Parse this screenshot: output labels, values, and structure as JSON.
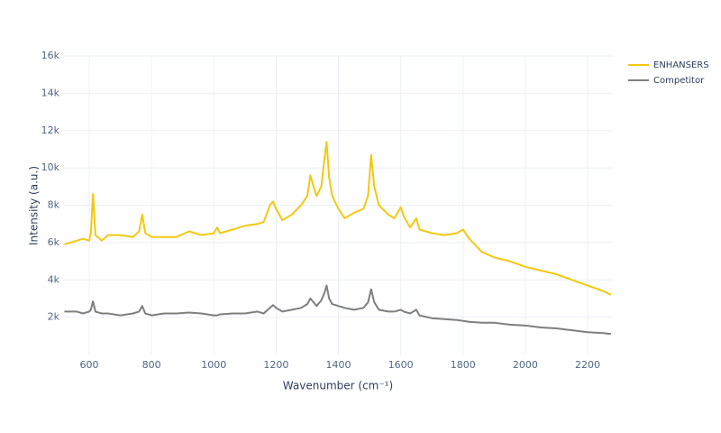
{
  "chart_data": {
    "type": "line",
    "x_label": "Wavenumber (cm⁻¹)",
    "y_label": "Intensity (a.u.)",
    "x": [
      520,
      560,
      580,
      600,
      605,
      612,
      620,
      640,
      660,
      700,
      740,
      760,
      770,
      780,
      800,
      840,
      880,
      920,
      960,
      1000,
      1010,
      1020,
      1060,
      1100,
      1140,
      1160,
      1180,
      1190,
      1200,
      1220,
      1250,
      1280,
      1300,
      1310,
      1320,
      1330,
      1345,
      1355,
      1362,
      1370,
      1380,
      1400,
      1420,
      1450,
      1480,
      1495,
      1505,
      1515,
      1530,
      1560,
      1580,
      1600,
      1610,
      1630,
      1650,
      1660,
      1700,
      1740,
      1780,
      1800,
      1820,
      1860,
      1900,
      1950,
      2000,
      2050,
      2100,
      2150,
      2200,
      2250,
      2275
    ],
    "series": [
      {
        "name": "ENHANSERS",
        "color": "#f2c811",
        "values": [
          5900,
          6100,
          6200,
          6100,
          6500,
          8600,
          6400,
          6100,
          6400,
          6400,
          6300,
          6600,
          7500,
          6500,
          6300,
          6300,
          6300,
          6600,
          6400,
          6500,
          6800,
          6500,
          6700,
          6900,
          7000,
          7100,
          8000,
          8200,
          7800,
          7200,
          7500,
          8000,
          8500,
          9600,
          9000,
          8500,
          9000,
          10500,
          11400,
          9500,
          8500,
          7800,
          7300,
          7600,
          7800,
          8500,
          10700,
          9000,
          8000,
          7500,
          7300,
          7900,
          7400,
          6800,
          7300,
          6700,
          6500,
          6400,
          6500,
          6700,
          6200,
          5500,
          5200,
          5000,
          4700,
          4500,
          4300,
          4000,
          3700,
          3400,
          3200
        ]
      },
      {
        "name": "Competitor",
        "color": "#7f7f7f",
        "values": [
          2300,
          2300,
          2200,
          2300,
          2400,
          2850,
          2300,
          2200,
          2200,
          2100,
          2200,
          2300,
          2600,
          2200,
          2100,
          2200,
          2200,
          2250,
          2200,
          2100,
          2100,
          2150,
          2200,
          2200,
          2300,
          2200,
          2500,
          2650,
          2500,
          2300,
          2400,
          2500,
          2700,
          3000,
          2800,
          2600,
          2900,
          3300,
          3700,
          3000,
          2700,
          2600,
          2500,
          2400,
          2500,
          2800,
          3500,
          2800,
          2400,
          2300,
          2300,
          2400,
          2300,
          2200,
          2400,
          2100,
          1950,
          1900,
          1850,
          1800,
          1750,
          1700,
          1700,
          1600,
          1550,
          1450,
          1400,
          1300,
          1200,
          1150,
          1100
        ]
      }
    ],
    "xlim": [
      516,
      2281
    ],
    "ylim": [
      0,
      16000
    ],
    "xticks": [
      600,
      800,
      1000,
      1200,
      1400,
      1600,
      1800,
      2000,
      2200
    ],
    "yticks": [
      {
        "value": 2000,
        "label": "2k"
      },
      {
        "value": 4000,
        "label": "4k"
      },
      {
        "value": 6000,
        "label": "6k"
      },
      {
        "value": 8000,
        "label": "8k"
      },
      {
        "value": 10000,
        "label": "10k"
      },
      {
        "value": 12000,
        "label": "12k"
      },
      {
        "value": 14000,
        "label": "14k"
      },
      {
        "value": 16000,
        "label": "16k"
      }
    ],
    "grid": true,
    "legend": "top-right"
  }
}
